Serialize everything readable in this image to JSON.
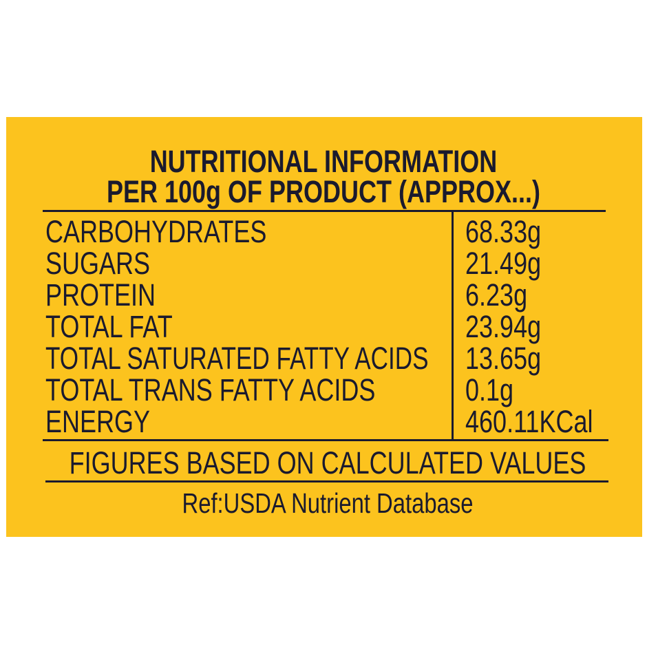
{
  "label": {
    "title_line1": "NUTRITIONAL INFORMATION",
    "title_line2": "PER 100g OF PRODUCT (APPROX...)",
    "rows": [
      {
        "nutrient": "CARBOHYDRATES",
        "value": "68.33g"
      },
      {
        "nutrient": "SUGARS",
        "value": "21.49g"
      },
      {
        "nutrient": "PROTEIN",
        "value": "6.23g"
      },
      {
        "nutrient": "TOTAL FAT",
        "value": "23.94g"
      },
      {
        "nutrient": "TOTAL SATURATED FATTY ACIDS",
        "value": "13.65g"
      },
      {
        "nutrient": "TOTAL TRANS FATTY ACIDS",
        "value": "0.1g"
      },
      {
        "nutrient": "ENERGY",
        "value": "460.11KCal"
      }
    ],
    "footnote": "FIGURES BASED ON CALCULATED VALUES",
    "reference": "Ref:USDA Nutrient Database",
    "colors": {
      "background": "#FCC31E",
      "text": "#1a1a2e"
    }
  }
}
